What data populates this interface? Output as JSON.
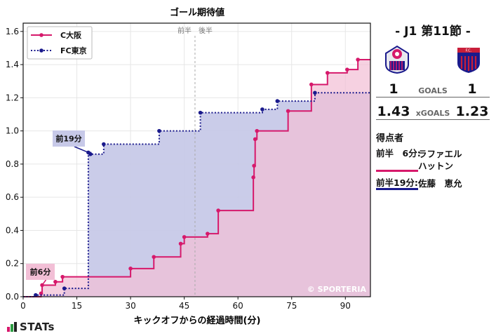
{
  "chart_data": {
    "type": "line",
    "style": "step-area",
    "title": "ゴール期待値",
    "xlabel": "キックオフからの経過時間(分)",
    "ylabel": "",
    "xlim": [
      0,
      97
    ],
    "ylim": [
      0,
      1.65
    ],
    "xticks": [
      0,
      15,
      30,
      45,
      60,
      75,
      90
    ],
    "yticks": [
      0.0,
      0.2,
      0.4,
      0.6,
      0.8,
      1.0,
      1.2,
      1.4,
      1.6
    ],
    "xtick_labels": [
      "0",
      "15",
      "30",
      "45",
      "60",
      "75",
      "90"
    ],
    "ytick_labels": [
      "0.0",
      "0.2",
      "0.4",
      "0.6",
      "0.8",
      "1.0",
      "1.2",
      "1.4",
      "1.6"
    ],
    "grid": true,
    "legend_position": "top-left",
    "half_time_minute": 48,
    "half_labels": {
      "first": "前半",
      "second": "後半"
    },
    "watermark": "© SPORTERIA",
    "series": [
      {
        "name": "C大阪",
        "color": "#d6196b",
        "fill": "#f2bfd6",
        "x": [
          0,
          5,
          5.3,
          9,
          11,
          30,
          36.5,
          44,
          45,
          51.5,
          54.5,
          64.3,
          64.5,
          64.8,
          65.3,
          74,
          80.5,
          85,
          90.5,
          93.5,
          97
        ],
        "y": [
          0,
          0.02,
          0.07,
          0.09,
          0.12,
          0.17,
          0.24,
          0.32,
          0.36,
          0.38,
          0.52,
          0.72,
          0.79,
          0.95,
          1.0,
          1.12,
          1.28,
          1.35,
          1.37,
          1.43,
          1.43
        ]
      },
      {
        "name": "FC東京",
        "color": "#1a1a8c",
        "fill": "#c7c9e8",
        "x": [
          0,
          3.5,
          11.5,
          18.2,
          18.8,
          22.5,
          38,
          49.5,
          66.8,
          71,
          81.5,
          97
        ],
        "y": [
          0,
          0.01,
          0.05,
          0.87,
          0.86,
          0.92,
          1.0,
          1.11,
          1.13,
          1.18,
          1.23,
          1.23
        ]
      }
    ],
    "annotations": [
      {
        "label": "前6分",
        "x": 5.3,
        "y": 0.07,
        "series": "C大阪"
      },
      {
        "label": "前19分",
        "x": 18.2,
        "y": 0.87,
        "series": "FC東京"
      }
    ]
  },
  "match": {
    "title": "- J1 第11節 -",
    "home": {
      "name": "C大阪",
      "goals": "1",
      "xg": "1.43",
      "color": "#d6196b"
    },
    "away": {
      "name": "FC東京",
      "goals": "1",
      "xg": "1.23",
      "color": "#1a1a8c"
    },
    "goals_label": "GOALS",
    "xgoals_label": "xGOALS",
    "scorers_title": "得点者",
    "scorers": [
      {
        "time": "前半　6分:",
        "name": "ラファエル\nハットン",
        "team": "home"
      },
      {
        "time": "前半19分:",
        "name": "佐藤　恵允",
        "team": "away"
      }
    ]
  },
  "brand": {
    "logo_text": "STATs"
  }
}
